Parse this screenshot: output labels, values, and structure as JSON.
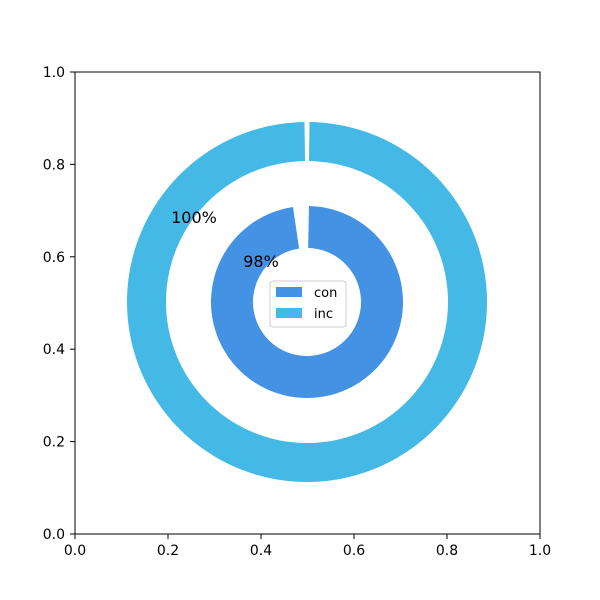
{
  "chart_data": {
    "type": "pie",
    "subtype": "nested-donut",
    "title": "",
    "xlabel": "",
    "ylabel": "",
    "xlim": [
      0,
      1
    ],
    "ylim": [
      0,
      1
    ],
    "x_ticks": [
      "0.0",
      "0.2",
      "0.4",
      "0.6",
      "0.8",
      "1.0"
    ],
    "y_ticks": [
      "0.0",
      "0.2",
      "0.4",
      "0.6",
      "0.8",
      "1.0"
    ],
    "grid": false,
    "legend_position": "center",
    "rings": [
      {
        "ring": "inner",
        "series": "con",
        "percent": 98,
        "label": "98%",
        "color": "#4392e3"
      },
      {
        "ring": "outer",
        "series": "inc",
        "percent": 100,
        "label": "100%",
        "color": "#45b9e5"
      }
    ],
    "legend": [
      {
        "label": "con",
        "color": "#4392e3"
      },
      {
        "label": "inc",
        "color": "#45b9e5"
      }
    ]
  }
}
